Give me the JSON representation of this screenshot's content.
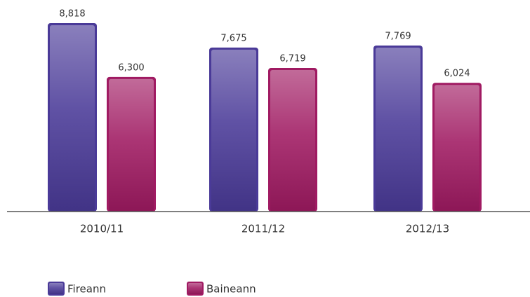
{
  "chart_data": {
    "type": "bar",
    "categories": [
      "2010/11",
      "2011/12",
      "2012/13"
    ],
    "series": [
      {
        "name": "Fireann",
        "color": "#4a3a98",
        "values": [
          8818,
          7675,
          7769
        ],
        "value_labels": [
          "8,818",
          "7,675",
          "7,769"
        ]
      },
      {
        "name": "Baineann",
        "color": "#a01a62",
        "values": [
          6300,
          6719,
          6024
        ],
        "value_labels": [
          "6,300",
          "6,719",
          "6,024"
        ]
      }
    ],
    "legend": "bottom-left"
  }
}
